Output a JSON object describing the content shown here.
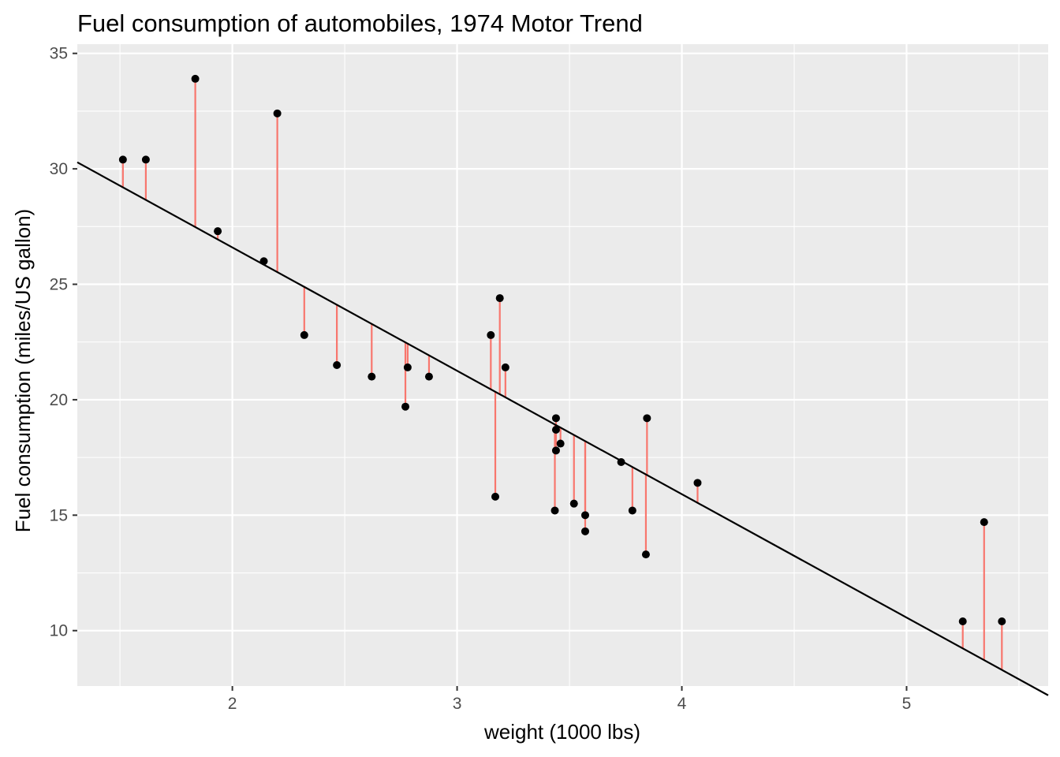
{
  "chart_data": {
    "type": "scatter",
    "title": "Fuel consumption of automobiles, 1974 Motor Trend",
    "xlabel": "weight (1000 lbs)",
    "ylabel": "Fuel consumption (miles/US gallon)",
    "xlim": [
      1.31,
      5.63
    ],
    "ylim": [
      7.6,
      35.4
    ],
    "x_ticks": [
      2,
      3,
      4,
      5
    ],
    "x_tick_labels": [
      "2",
      "3",
      "4",
      "5"
    ],
    "y_ticks": [
      10,
      15,
      20,
      25,
      30,
      35
    ],
    "y_tick_labels": [
      "10",
      "15",
      "20",
      "25",
      "30",
      "35"
    ],
    "grid": true,
    "regression_line": {
      "intercept": 37.285,
      "slope": -5.344
    },
    "colors": {
      "panel_background": "#ebebeb",
      "grid_major": "#ffffff",
      "point": "#000000",
      "fit_line": "#000000",
      "residual_segment": "#f8766d"
    },
    "points": [
      {
        "x": 2.62,
        "y": 21.0
      },
      {
        "x": 2.875,
        "y": 21.0
      },
      {
        "x": 2.32,
        "y": 22.8
      },
      {
        "x": 3.215,
        "y": 21.4
      },
      {
        "x": 3.44,
        "y": 18.7
      },
      {
        "x": 3.46,
        "y": 18.1
      },
      {
        "x": 3.57,
        "y": 14.3
      },
      {
        "x": 3.19,
        "y": 24.4
      },
      {
        "x": 3.15,
        "y": 22.8
      },
      {
        "x": 3.44,
        "y": 19.2
      },
      {
        "x": 3.44,
        "y": 17.8
      },
      {
        "x": 4.07,
        "y": 16.4
      },
      {
        "x": 3.73,
        "y": 17.3
      },
      {
        "x": 3.78,
        "y": 15.2
      },
      {
        "x": 5.25,
        "y": 10.4
      },
      {
        "x": 5.424,
        "y": 10.4
      },
      {
        "x": 5.345,
        "y": 14.7
      },
      {
        "x": 2.2,
        "y": 32.4
      },
      {
        "x": 1.615,
        "y": 30.4
      },
      {
        "x": 1.835,
        "y": 33.9
      },
      {
        "x": 2.465,
        "y": 21.5
      },
      {
        "x": 3.52,
        "y": 15.5
      },
      {
        "x": 3.435,
        "y": 15.2
      },
      {
        "x": 3.84,
        "y": 13.3
      },
      {
        "x": 3.845,
        "y": 19.2
      },
      {
        "x": 1.935,
        "y": 27.3
      },
      {
        "x": 2.14,
        "y": 26.0
      },
      {
        "x": 1.513,
        "y": 30.4
      },
      {
        "x": 3.17,
        "y": 15.8
      },
      {
        "x": 2.77,
        "y": 19.7
      },
      {
        "x": 3.57,
        "y": 15.0
      },
      {
        "x": 2.78,
        "y": 21.4
      }
    ]
  }
}
